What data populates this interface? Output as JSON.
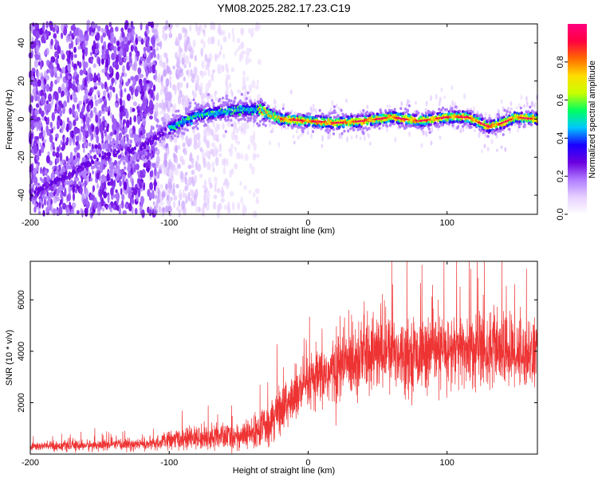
{
  "chart_data": [
    {
      "type": "heatmap",
      "title": "YM08.2025.282.17.23.C19",
      "xlabel": "Height of straight line (km)",
      "ylabel": "Frequency (Hz)",
      "xlim": [
        -200,
        165
      ],
      "ylim": [
        -50,
        50
      ],
      "xticks": [
        -200,
        -100,
        0,
        100
      ],
      "yticks": [
        -40,
        -20,
        0,
        20,
        40
      ],
      "colorbar": {
        "label": "Normalized spectral amplitude",
        "range": [
          0,
          1
        ],
        "ticks": [
          0.0,
          0.2,
          0.4,
          0.6,
          0.8
        ],
        "colormap": [
          "#ffffff",
          "#e6d0ff",
          "#b07cff",
          "#6a00e0",
          "#1a00ff",
          "#00c8ff",
          "#00ff60",
          "#c8ff00",
          "#ffdd00",
          "#ff6a00",
          "#ff0040",
          "#ff0080"
        ]
      },
      "ridge": {
        "description_points": [
          {
            "x": -200,
            "y": -40
          },
          {
            "x": -150,
            "y": -20
          },
          {
            "x": -120,
            "y": -15
          },
          {
            "x": -100,
            "y": -5
          },
          {
            "x": -80,
            "y": 2
          },
          {
            "x": -50,
            "y": 5
          },
          {
            "x": -35,
            "y": 5
          },
          {
            "x": -20,
            "y": 0
          },
          {
            "x": 0,
            "y": -1
          },
          {
            "x": 20,
            "y": -2
          },
          {
            "x": 40,
            "y": -1
          },
          {
            "x": 60,
            "y": 1
          },
          {
            "x": 80,
            "y": -1
          },
          {
            "x": 100,
            "y": 1
          },
          {
            "x": 115,
            "y": 1
          },
          {
            "x": 130,
            "y": -4
          },
          {
            "x": 140,
            "y": -2
          },
          {
            "x": 150,
            "y": 1
          },
          {
            "x": 165,
            "y": 0
          }
        ]
      }
    },
    {
      "type": "line",
      "xlabel": "Height of straight line (km)",
      "ylabel": "SNR (10 * v/v)",
      "xlim": [
        -200,
        165
      ],
      "ylim": [
        0,
        7500
      ],
      "xticks": [
        -200,
        -100,
        0,
        100
      ],
      "yticks": [
        2000,
        4000,
        6000
      ],
      "color": "#ee3333",
      "series_envelope": [
        {
          "x": -200,
          "mean": 300,
          "spread": 150
        },
        {
          "x": -150,
          "mean": 350,
          "spread": 180
        },
        {
          "x": -110,
          "mean": 400,
          "spread": 200
        },
        {
          "x": -100,
          "mean": 550,
          "spread": 300
        },
        {
          "x": -70,
          "mean": 650,
          "spread": 400
        },
        {
          "x": -45,
          "mean": 700,
          "spread": 450
        },
        {
          "x": -35,
          "mean": 900,
          "spread": 600
        },
        {
          "x": -25,
          "mean": 1500,
          "spread": 800
        },
        {
          "x": -10,
          "mean": 2200,
          "spread": 900
        },
        {
          "x": 0,
          "mean": 2700,
          "spread": 900
        },
        {
          "x": 10,
          "mean": 3000,
          "spread": 1000
        },
        {
          "x": 20,
          "mean": 3300,
          "spread": 1100
        },
        {
          "x": 30,
          "mean": 3700,
          "spread": 1300
        },
        {
          "x": 40,
          "mean": 3900,
          "spread": 1300
        },
        {
          "x": 60,
          "mean": 4000,
          "spread": 1200
        },
        {
          "x": 80,
          "mean": 3900,
          "spread": 1100
        },
        {
          "x": 100,
          "mean": 4000,
          "spread": 1200
        },
        {
          "x": 120,
          "mean": 4100,
          "spread": 1300
        },
        {
          "x": 140,
          "mean": 4000,
          "spread": 1200
        },
        {
          "x": 165,
          "mean": 3900,
          "spread": 1100
        }
      ]
    }
  ]
}
